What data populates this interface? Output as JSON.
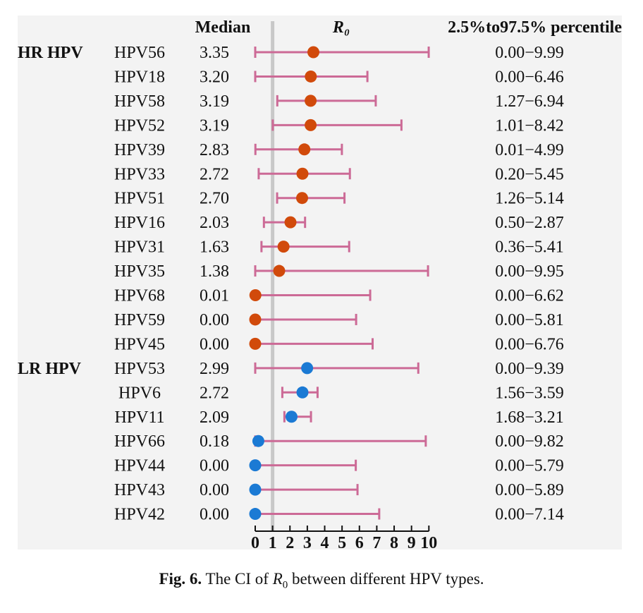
{
  "chart_data": {
    "type": "forest",
    "columns": {
      "median": "Median",
      "r0": "R₀",
      "ci": "2.5%to97.5% percentile"
    },
    "groups": [
      {
        "label": "HR HPV",
        "color": "#d14a0b"
      },
      {
        "label": "LR HPV",
        "color": "#1b7ad4"
      }
    ],
    "rows": [
      {
        "group": 0,
        "name": "HPV56",
        "median_text": "3.35",
        "median": 3.35,
        "low": 0.0,
        "high": 9.99,
        "ci_text": "0.00−9.99"
      },
      {
        "group": 0,
        "name": "HPV18",
        "median_text": "3.20",
        "median": 3.2,
        "low": 0.0,
        "high": 6.46,
        "ci_text": "0.00−6.46"
      },
      {
        "group": 0,
        "name": "HPV58",
        "median_text": "3.19",
        "median": 3.19,
        "low": 1.27,
        "high": 6.94,
        "ci_text": "1.27−6.94"
      },
      {
        "group": 0,
        "name": "HPV52",
        "median_text": "3.19",
        "median": 3.19,
        "low": 1.01,
        "high": 8.42,
        "ci_text": "1.01−8.42"
      },
      {
        "group": 0,
        "name": "HPV39",
        "median_text": "2.83",
        "median": 2.83,
        "low": 0.01,
        "high": 4.99,
        "ci_text": "0.01−4.99"
      },
      {
        "group": 0,
        "name": "HPV33",
        "median_text": "2.72",
        "median": 2.72,
        "low": 0.2,
        "high": 5.45,
        "ci_text": "0.20−5.45"
      },
      {
        "group": 0,
        "name": "HPV51",
        "median_text": "2.70",
        "median": 2.7,
        "low": 1.26,
        "high": 5.14,
        "ci_text": "1.26−5.14"
      },
      {
        "group": 0,
        "name": "HPV16",
        "median_text": "2.03",
        "median": 2.03,
        "low": 0.5,
        "high": 2.87,
        "ci_text": "0.50−2.87"
      },
      {
        "group": 0,
        "name": "HPV31",
        "median_text": "1.63",
        "median": 1.63,
        "low": 0.36,
        "high": 5.41,
        "ci_text": "0.36−5.41"
      },
      {
        "group": 0,
        "name": "HPV35",
        "median_text": "1.38",
        "median": 1.38,
        "low": 0.0,
        "high": 9.95,
        "ci_text": "0.00−9.95"
      },
      {
        "group": 0,
        "name": "HPV68",
        "median_text": "0.01",
        "median": 0.01,
        "low": 0.0,
        "high": 6.62,
        "ci_text": "0.00−6.62"
      },
      {
        "group": 0,
        "name": "HPV59",
        "median_text": "0.00",
        "median": 0.0,
        "low": 0.0,
        "high": 5.81,
        "ci_text": "0.00−5.81"
      },
      {
        "group": 0,
        "name": "HPV45",
        "median_text": "0.00",
        "median": 0.0,
        "low": 0.0,
        "high": 6.76,
        "ci_text": "0.00−6.76"
      },
      {
        "group": 1,
        "name": "HPV53",
        "median_text": "2.99",
        "median": 2.99,
        "low": 0.0,
        "high": 9.39,
        "ci_text": "0.00−9.39"
      },
      {
        "group": 1,
        "name": "HPV6",
        "median_text": "2.72",
        "median": 2.72,
        "low": 1.56,
        "high": 3.59,
        "ci_text": "1.56−3.59"
      },
      {
        "group": 1,
        "name": "HPV11",
        "median_text": "2.09",
        "median": 2.09,
        "low": 1.68,
        "high": 3.21,
        "ci_text": "1.68−3.21"
      },
      {
        "group": 1,
        "name": "HPV66",
        "median_text": "0.18",
        "median": 0.18,
        "low": 0.0,
        "high": 9.82,
        "ci_text": "0.00−9.82"
      },
      {
        "group": 1,
        "name": "HPV44",
        "median_text": "0.00",
        "median": 0.0,
        "low": 0.0,
        "high": 5.79,
        "ci_text": "0.00−5.79"
      },
      {
        "group": 1,
        "name": "HPV43",
        "median_text": "0.00",
        "median": 0.0,
        "low": 0.0,
        "high": 5.89,
        "ci_text": "0.00−5.89"
      },
      {
        "group": 1,
        "name": "HPV42",
        "median_text": "0.00",
        "median": 0.0,
        "low": 0.0,
        "high": 7.14,
        "ci_text": "0.00−7.14"
      }
    ],
    "xlim": [
      0,
      10
    ],
    "xticks": [
      0,
      1,
      2,
      3,
      4,
      5,
      6,
      7,
      8,
      9,
      10
    ],
    "reference_line": 1,
    "ci_color": "#cc6a96",
    "reference_line_color": "#c8c8c8"
  },
  "caption": {
    "label": "Fig. 6.",
    "text_before": "The CI of ",
    "symbol": "R",
    "subscript": "0",
    "text_after": " between different HPV types."
  }
}
